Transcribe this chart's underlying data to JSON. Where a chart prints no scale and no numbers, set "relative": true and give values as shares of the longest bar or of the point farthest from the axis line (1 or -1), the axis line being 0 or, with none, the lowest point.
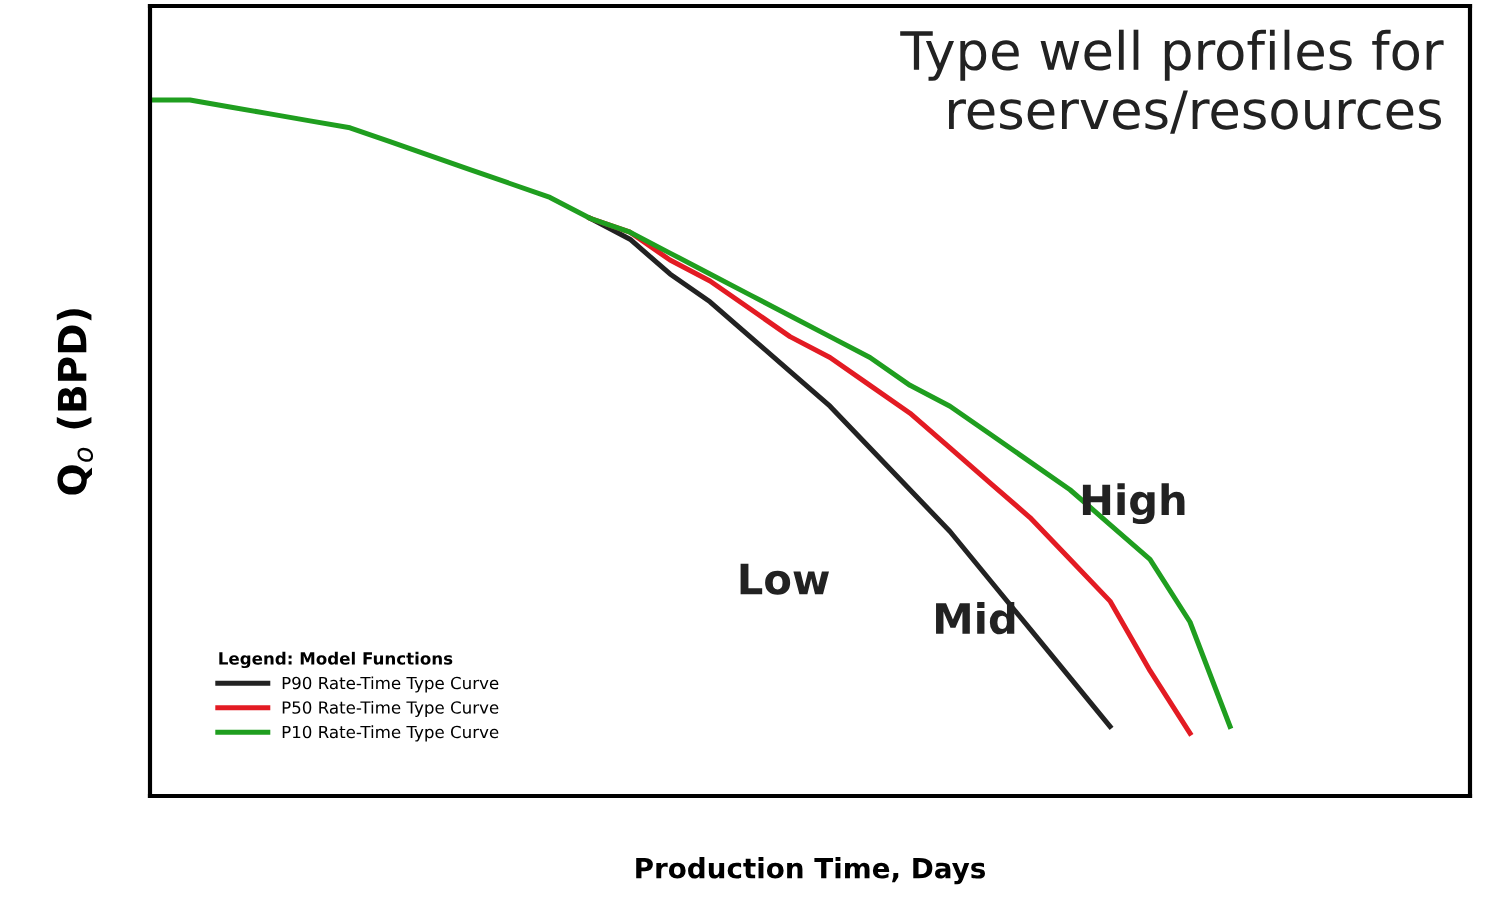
{
  "chart_data": {
    "type": "line",
    "relative": true,
    "xlabel": "Production Time, Days",
    "ylabel": "Q$_{o}$ (BPD)",
    "categories": [
      null,
      null,
      null,
      null,
      null,
      null,
      null,
      null,
      null,
      null,
      null,
      null,
      null,
      null,
      null,
      null,
      null,
      null,
      null,
      null,
      null,
      null,
      null,
      null,
      null,
      null,
      null,
      null,
      null,
      null,
      null,
      null,
      null,
      null
    ],
    "legend": "bottom left",
    "legend_title": "Legend: Model Functions",
    "series": [
      {
        "name": "P90 Rate-Time Type Curve",
        "color": "#222222",
        "values": [
          null,
          null,
          null,
          null,
          null,
          null,
          null,
          null,
          null,
          null,
          null,
          0.83,
          0.8,
          0.75,
          0.71,
          0.66,
          0.61,
          0.56,
          0.5,
          0.44,
          0.38,
          0.31,
          0.24,
          0.17,
          0.1,
          null,
          null,
          null,
          null,
          null,
          null,
          null,
          null,
          null
        ]
      },
      {
        "name": "P50 Rate-Time Type Curve",
        "color": "#e31b23",
        "values": [
          null,
          null,
          null,
          null,
          null,
          null,
          null,
          null,
          null,
          null,
          null,
          0.83,
          0.81,
          0.77,
          0.74,
          0.7,
          0.66,
          0.63,
          0.59,
          0.55,
          0.5,
          0.45,
          0.4,
          0.34,
          0.28,
          0.18,
          0.09,
          null,
          null,
          null,
          null,
          null,
          null,
          null
        ]
      },
      {
        "name": "P10 Rate-Time Type Curve",
        "color": "#1f9e1f",
        "values": [
          1.0,
          1.0,
          0.99,
          0.98,
          0.97,
          0.96,
          0.94,
          0.92,
          0.9,
          0.88,
          0.86,
          0.83,
          0.81,
          0.78,
          0.75,
          0.72,
          0.69,
          0.66,
          0.63,
          0.59,
          0.56,
          0.52,
          0.48,
          0.44,
          0.39,
          0.34,
          0.25,
          0.1,
          null,
          null,
          null,
          null,
          null,
          null
        ]
      }
    ],
    "annotations": [
      "Type well profiles for\nreserves/resources",
      "Low",
      "Mid",
      "High"
    ]
  }
}
